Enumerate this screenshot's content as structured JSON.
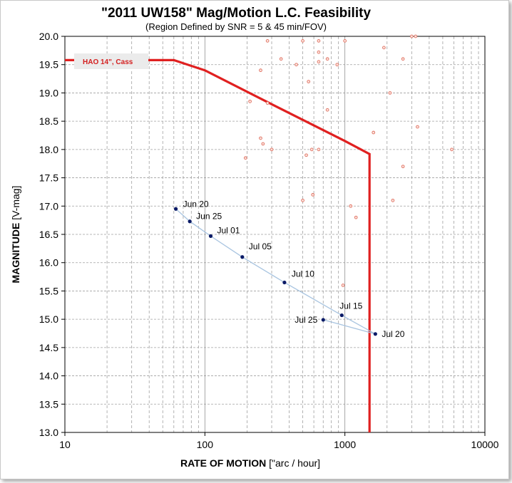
{
  "chart_data": {
    "type": "scatter",
    "title": "\"2011 UW158\" Mag/Motion L.C. Feasibility",
    "subtitle": "(Region Defined by SNR = 5 & 45 min/FOV)",
    "xlabel_bold": "RATE OF MOTION",
    "xlabel_unit": " [\"arc / hour]",
    "ylabel_bold": "MAGNITUDE",
    "ylabel_unit": "  [V-mag]",
    "x_scale": "log",
    "xlim": [
      10,
      10000
    ],
    "ylim": [
      13.0,
      20.0
    ],
    "x_ticks": [
      "10",
      "100",
      "1000",
      "10000"
    ],
    "y_ticks": [
      "20.0",
      "19.5",
      "19.0",
      "18.5",
      "18.0",
      "17.5",
      "17.0",
      "16.5",
      "16.0",
      "15.5",
      "15.0",
      "14.5",
      "14.0",
      "13.5",
      "13.0"
    ],
    "grid": true,
    "colors": {
      "feasibility_line": "#e02020",
      "track_line": "#a8c4e0",
      "track_point": "#0a1a66",
      "background_point": "#e07060"
    },
    "feasibility_boundary": {
      "legend_label": "HAO 14\", Cass",
      "x": [
        10,
        60,
        100,
        300,
        1000,
        1500,
        1500
      ],
      "y": [
        19.58,
        19.58,
        19.4,
        18.8,
        18.15,
        17.92,
        13.0
      ]
    },
    "track": [
      {
        "label": "Jun 20",
        "x": 62,
        "y": 16.95
      },
      {
        "label": "Jun 25",
        "x": 78,
        "y": 16.73
      },
      {
        "label": "Jul 01",
        "x": 110,
        "y": 16.47
      },
      {
        "label": "Jul 05",
        "x": 185,
        "y": 16.1
      },
      {
        "label": "Jul 10",
        "x": 370,
        "y": 15.65
      },
      {
        "label": "Jul 15",
        "x": 950,
        "y": 15.07
      },
      {
        "label": "Jul 20",
        "x": 1650,
        "y": 14.74
      },
      {
        "label": "Jul 25",
        "x": 700,
        "y": 14.99
      }
    ],
    "background_points": [
      {
        "x": 280,
        "y": 19.92
      },
      {
        "x": 500,
        "y": 19.92
      },
      {
        "x": 650,
        "y": 19.92
      },
      {
        "x": 1000,
        "y": 19.92
      },
      {
        "x": 3000,
        "y": 20.0
      },
      {
        "x": 3200,
        "y": 20.0
      },
      {
        "x": 1900,
        "y": 19.8
      },
      {
        "x": 650,
        "y": 19.72
      },
      {
        "x": 350,
        "y": 19.6
      },
      {
        "x": 650,
        "y": 19.55
      },
      {
        "x": 750,
        "y": 19.6
      },
      {
        "x": 450,
        "y": 19.5
      },
      {
        "x": 880,
        "y": 19.5
      },
      {
        "x": 2600,
        "y": 19.6
      },
      {
        "x": 250,
        "y": 19.4
      },
      {
        "x": 550,
        "y": 19.2
      },
      {
        "x": 2100,
        "y": 19.0
      },
      {
        "x": 210,
        "y": 18.85
      },
      {
        "x": 280,
        "y": 18.82
      },
      {
        "x": 750,
        "y": 18.7
      },
      {
        "x": 3300,
        "y": 18.4
      },
      {
        "x": 1600,
        "y": 18.3
      },
      {
        "x": 250,
        "y": 18.2
      },
      {
        "x": 260,
        "y": 18.1
      },
      {
        "x": 300,
        "y": 18.0
      },
      {
        "x": 580,
        "y": 18.0
      },
      {
        "x": 650,
        "y": 18.0
      },
      {
        "x": 530,
        "y": 17.9
      },
      {
        "x": 195,
        "y": 17.85
      },
      {
        "x": 5800,
        "y": 18.0
      },
      {
        "x": 2600,
        "y": 17.7
      },
      {
        "x": 590,
        "y": 17.2
      },
      {
        "x": 500,
        "y": 17.1
      },
      {
        "x": 2200,
        "y": 17.1
      },
      {
        "x": 1100,
        "y": 17.0
      },
      {
        "x": 1200,
        "y": 16.8
      },
      {
        "x": 970,
        "y": 15.6
      }
    ]
  }
}
